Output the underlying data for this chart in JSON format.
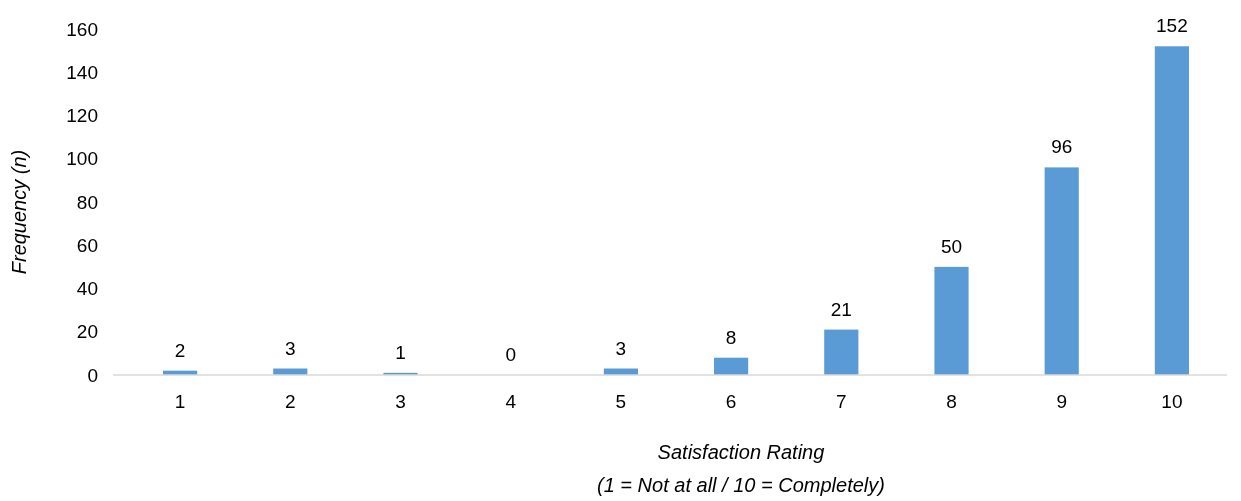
{
  "chart_data": {
    "type": "bar",
    "xlabel": "Satisfaction Rating\n(1 = Not at all / 10 = Completely)",
    "ylabel": "Frequency (n)",
    "categories": [
      "1",
      "2",
      "3",
      "4",
      "5",
      "6",
      "7",
      "8",
      "9",
      "10"
    ],
    "values": [
      2,
      3,
      1,
      0,
      3,
      8,
      21,
      50,
      96,
      152
    ],
    "color": "#5b9bd5",
    "ylim": [
      0,
      160
    ],
    "yticks": [
      0,
      20,
      40,
      60,
      80,
      100,
      120,
      140,
      160
    ],
    "data_labels": true
  }
}
